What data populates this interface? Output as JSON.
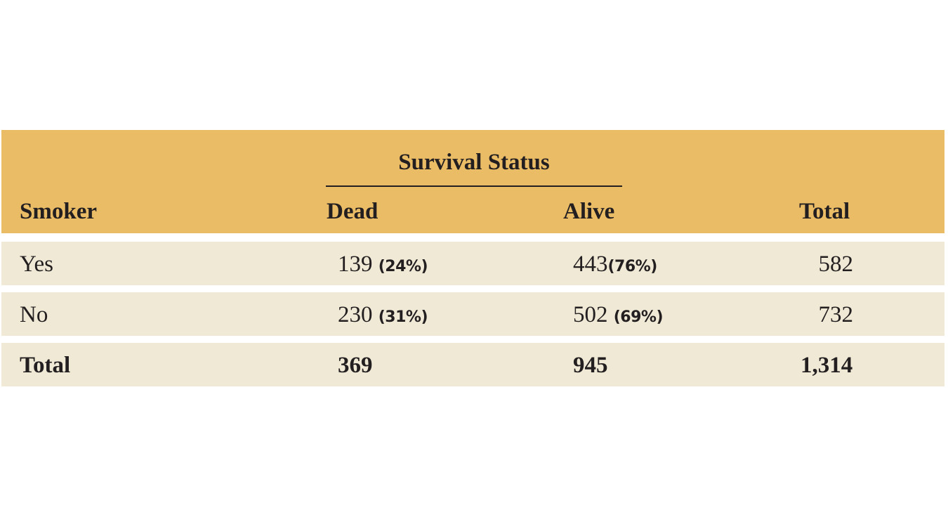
{
  "table": {
    "group_header": "Survival Status",
    "columns": {
      "smoker": "Smoker",
      "dead": "Dead",
      "alive": "Alive",
      "total": "Total"
    },
    "rows": [
      {
        "label": "Yes",
        "dead_count": "139",
        "dead_pct": "(24%)",
        "alive_count": "443",
        "alive_pct": "(76%)",
        "total": "582"
      },
      {
        "label": "No",
        "dead_count": "230",
        "dead_pct": "(31%)",
        "alive_count": "502",
        "alive_pct": "(69%)",
        "total": "732"
      }
    ],
    "totals": {
      "label": "Total",
      "dead": "369",
      "alive": "945",
      "total": "1,314"
    }
  },
  "colors": {
    "header_background": "#eabc66",
    "row_background": "#f0e9d6",
    "text": "#231f20"
  }
}
